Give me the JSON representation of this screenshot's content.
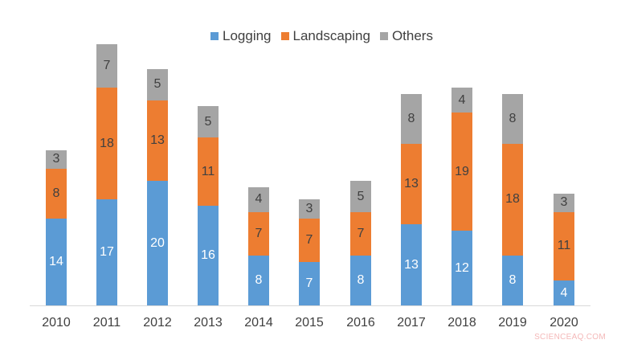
{
  "chart_data": {
    "type": "bar",
    "stacked": true,
    "title": "",
    "xlabel": "",
    "ylabel": "",
    "categories": [
      "2010",
      "2011",
      "2012",
      "2013",
      "2014",
      "2015",
      "2016",
      "2017",
      "2018",
      "2019",
      "2020"
    ],
    "series": [
      {
        "name": "Logging",
        "color": "#5b9bd5",
        "values": [
          14,
          17,
          20,
          16,
          8,
          7,
          8,
          13,
          12,
          8,
          4
        ]
      },
      {
        "name": "Landscaping",
        "color": "#ed7d31",
        "values": [
          8,
          18,
          13,
          11,
          7,
          7,
          7,
          13,
          19,
          18,
          11
        ]
      },
      {
        "name": "Others",
        "color": "#a5a5a5",
        "values": [
          3,
          7,
          5,
          5,
          4,
          3,
          5,
          8,
          4,
          8,
          3
        ]
      }
    ],
    "data_labels": true,
    "legend_position": "top",
    "grid": false,
    "ylim": [
      0,
      42
    ]
  },
  "legend": {
    "items": [
      {
        "label": "Logging",
        "color": "#5b9bd5"
      },
      {
        "label": "Landscaping",
        "color": "#ed7d31"
      },
      {
        "label": "Others",
        "color": "#a5a5a5"
      }
    ]
  },
  "watermark": "SCIENCEAQ.COM"
}
